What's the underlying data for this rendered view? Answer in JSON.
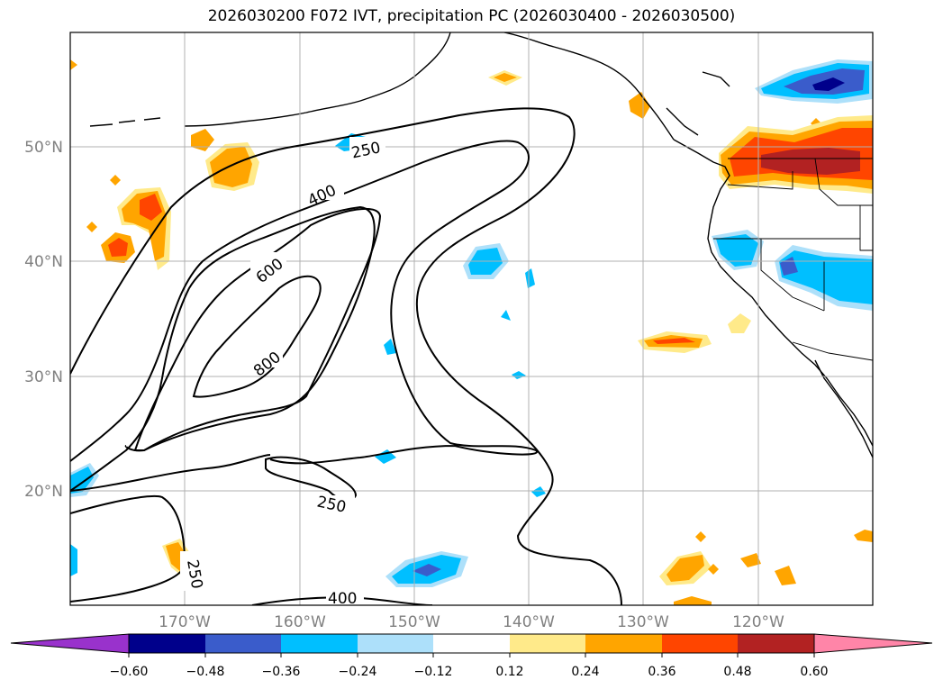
{
  "title": "2026030200 F072 IVT, precipitation PC (2026030400 - 2026030500)",
  "map": {
    "lon_range": [
      -180,
      -110
    ],
    "lat_range": [
      10,
      60
    ],
    "lat_labels": [
      "50°N",
      "40°N",
      "30°N",
      "20°N"
    ],
    "lon_labels": [
      "170°W",
      "160°W",
      "150°W",
      "140°W",
      "130°W",
      "120°W"
    ],
    "label_color": "#808080",
    "ivt_contour_levels": [
      250,
      400,
      600,
      800
    ],
    "ivt_contour_labels": [
      "250",
      "400",
      "600",
      "800",
      "250",
      "250",
      "400"
    ]
  },
  "colorbar": {
    "tick_labels": [
      "−0.60",
      "−0.48",
      "−0.36",
      "−0.24",
      "−0.12",
      "0.12",
      "0.24",
      "0.36",
      "0.48",
      "0.60"
    ],
    "colors": [
      "#9932CC",
      "#00008B",
      "#3A5CCB",
      "#00BFFF",
      "#ADE0FA",
      "#FFFFFF",
      "#FFEA8A",
      "#FFA500",
      "#FF4500",
      "#B22222",
      "#FF85A8"
    ]
  }
}
